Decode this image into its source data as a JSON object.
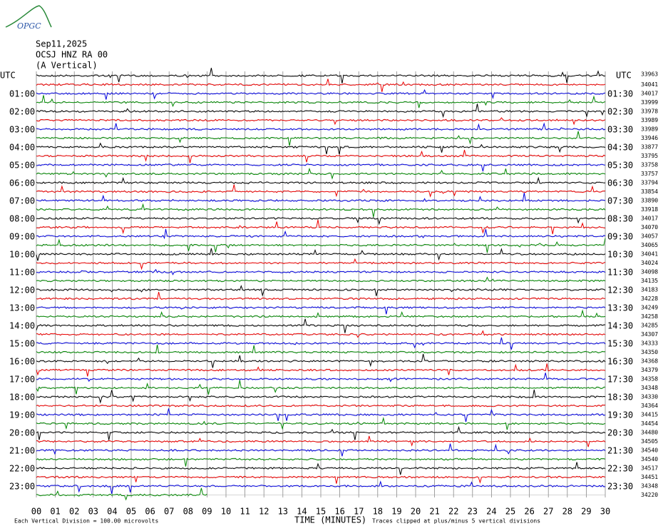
{
  "header": {
    "logo": "OPGC",
    "date": "Sep11,2025",
    "station": "OCSJ HNZ RA 00",
    "component": "(A Vertical)"
  },
  "left_labels": [
    "UTC",
    "01:00",
    "02:00",
    "03:00",
    "04:00",
    "05:00",
    "06:00",
    "07:00",
    "08:00",
    "09:00",
    "10:00",
    "11:00",
    "12:00",
    "13:00",
    "14:00",
    "15:00",
    "16:00",
    "17:00",
    "18:00",
    "19:00",
    "20:00",
    "21:00",
    "22:00",
    "23:00"
  ],
  "right_labels": [
    "UTC",
    "01:30",
    "02:30",
    "03:30",
    "04:30",
    "05:30",
    "06:30",
    "07:30",
    "08:30",
    "09:30",
    "10:30",
    "11:30",
    "12:30",
    "13:30",
    "14:30",
    "15:30",
    "16:30",
    "17:30",
    "18:30",
    "19:30",
    "20:30",
    "21:30",
    "22:30",
    "23:30"
  ],
  "trace_levels": [
    33963,
    34041,
    34017,
    33999,
    33978,
    33989,
    33989,
    33946,
    33877,
    33795,
    33758,
    33757,
    33794,
    33854,
    33890,
    33918,
    34017,
    34070,
    34057,
    34065,
    34041,
    34024,
    34098,
    34135,
    34183,
    34228,
    34249,
    34258,
    34285,
    34307,
    34333,
    34350,
    34368,
    34379,
    34358,
    34348,
    34330,
    34364,
    34415,
    34454,
    34480,
    34505,
    34540,
    34540,
    34517,
    34451,
    34348,
    34220
  ],
  "x_ticks": [
    "00",
    "01",
    "02",
    "03",
    "04",
    "05",
    "06",
    "07",
    "08",
    "09",
    "10",
    "11",
    "12",
    "13",
    "14",
    "15",
    "16",
    "17",
    "18",
    "19",
    "20",
    "21",
    "22",
    "23",
    "24",
    "25",
    "26",
    "27",
    "28",
    "29",
    "30"
  ],
  "footer": {
    "scale_note": "Each Vertical Division =  100.00 microvolts",
    "x_title": "TIME (MINUTES)",
    "clip_note": "Traces clipped at plus/minus 5 vertical divisions"
  }
}
